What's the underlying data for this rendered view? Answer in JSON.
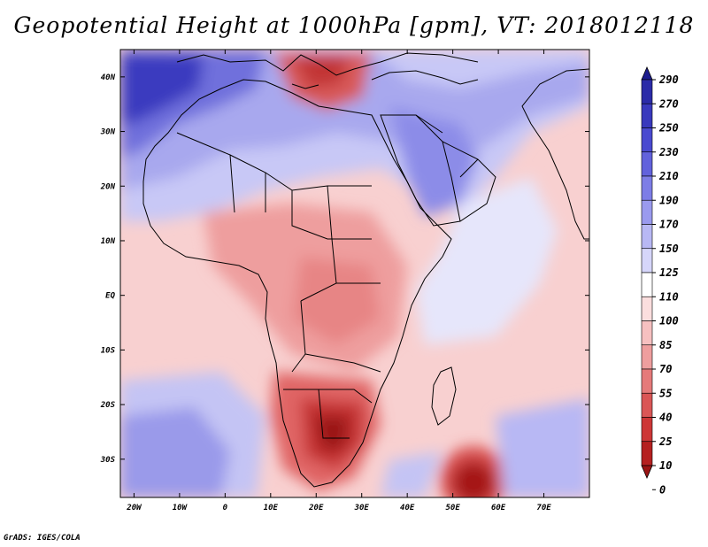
{
  "title": "Geopotential Height at 1000hPa [gpm], VT: 2018012118",
  "credit": "GrADS: IGES/COLA",
  "map": {
    "lon_range": [
      -23,
      80
    ],
    "lat_range": [
      -37,
      45
    ],
    "x_ticks": [
      "20W",
      "10W",
      "0",
      "10E",
      "20E",
      "30E",
      "40E",
      "50E",
      "60E",
      "70E"
    ],
    "y_ticks": [
      "40N",
      "30N",
      "20N",
      "10N",
      "EQ",
      "10S",
      "20S",
      "30S"
    ]
  },
  "colorbar": {
    "levels": [
      "290",
      "270",
      "250",
      "230",
      "210",
      "190",
      "170",
      "150",
      "125",
      "110",
      "100",
      "85",
      "70",
      "55",
      "40",
      "25",
      "10",
      "0"
    ],
    "colors": [
      "#1d1d8f",
      "#2b2ba8",
      "#3939bd",
      "#4a4ad0",
      "#6262dc",
      "#7d7de6",
      "#9a9aee",
      "#b8b8f4",
      "#d6d6fa",
      "#ffffff",
      "#fbdede",
      "#f6c0c0",
      "#ee9e9e",
      "#e57a7a",
      "#da5656",
      "#cd3636",
      "#b52020",
      "#9a1414"
    ]
  }
}
